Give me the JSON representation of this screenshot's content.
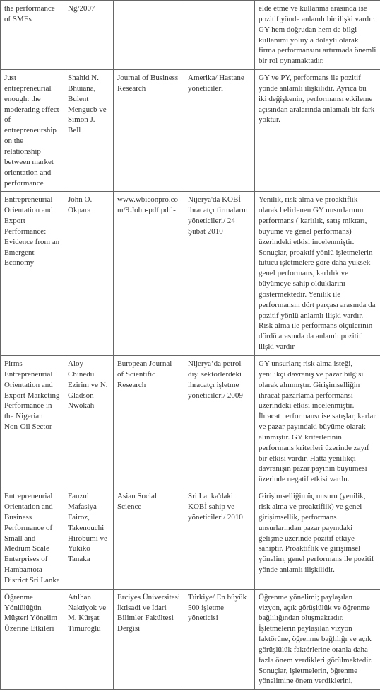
{
  "table": {
    "rows": [
      {
        "title": "the performance of SMEs",
        "authors": "Ng/2007",
        "journal": "",
        "sample": "",
        "finding": "elde etme ve kullanma arasında ise pozitif yönde anlamlı bir ilişki vardır. GY hem doğrudan hem de bilgi kullanımı yoluyla dolaylı olarak firma performansını artırmada önemli bir rol oynamaktadır."
      },
      {
        "title": "Just entrepreneurial enough: the moderating effect of entrepreneurship on\nthe relationship between market orientation and performance",
        "authors": "Shahid N. Bhuiana, Bulent Mengucb ve Simon J. Bell",
        "journal": "Journal of Business Research",
        "sample": "Amerika/ Hastane yöneticileri",
        "finding": "GY ve PY, performans ile pozitif yönde anlamlı ilişkilidir. Ayrıca bu iki değişkenin, performansı etkileme açısından aralarında anlamalı bir fark yoktur."
      },
      {
        "title": "Entrepreneurial Orientation and Export Performance: Evidence from an Emergent Economy",
        "authors": "John O. Okpara",
        "journal": "www.wbiconpro.com/9.John-pdf.pdf -",
        "sample": "Nijerya'da KOBİ ihracatçı firmaların yöneticileri/\n24 Şubat 2010",
        "finding": "Yenilik, risk alma ve proaktiflik olarak belirlenen GY unsurlarının performans  ( karlılık, satış miktarı, büyüme ve genel performans) üzerindeki etkisi incelenmiştir. Sonuçlar, proaktif yönlü işletmelerin tutucu işletmelere göre daha yüksek genel performans, karlılık ve büyümeye sahip olduklarını göstermektedir. Yenilik ile performansın dört parçası arasında da pozitif yönlü anlamlı ilişki vardır. Risk alma ile performans ölçülerinin dördü arasında da anlamlı pozitif ilişki vardır"
      },
      {
        "title": "Firms Entrepreneurial Orientation and Export Marketing Performance in the Nigerian Non-Oil Sector",
        "authors": "Aloy Chinedu Ezirim ve N. Gladson Nwokah",
        "journal": "European Journal of Scientific Research",
        "sample": "Nijerya’da petrol dışı sektörlerdeki ihracatçı işletme yöneticileri/ 2009",
        "finding": "GY unsurları; risk alma isteği, yenilikçi davranış ve pazar bilgisi olarak alınmıştır. Girişimselliğin ihracat pazarlama performansı üzerindeki etkisi incelenmiştir. İhracat performansı ise satışlar, karlar ve pazar payındaki büyüme olarak alınmıştır. GY kriterlerinin performans kriterleri üzerinde zayıf bir etkisi vardır. Hatta yenilikçi davranışın pazar payının büyümesi üzerinde negatif etkisi vardır."
      },
      {
        "title": "Entrepreneurial Orientation and Business Performance of Small\nand Medium Scale Enterprises of Hambantota District Sri Lanka",
        "authors": "Fauzul Mafasiya Fairoz, Takenouchi Hirobumi ve\nYukiko Tanaka",
        "journal": "Asian Social Science",
        "sample": "Sri Lanka'daki  KOBİ sahip  ve yöneticileri/ 2010",
        "finding": "Girişimselliğin üç unsuru (yenilik, risk alma ve proaktiflik) ve genel girişimsellik, performans unsurlarından pazar payındaki gelişme üzerinde pozitif etkiye sahiptir. Proaktiflik ve girişimsel yönelim, genel performans ile pozitif yönde anlamlı ilişkilidir."
      },
      {
        "title": "Öğrenme Yönlülüğün Müşteri Yönelim Üzerine Etkileri",
        "authors": "Atılhan Naktiyok ve M. Kürşat Timuroğlu",
        "journal": "Erciyes Üniversitesi İktisadi ve İdari Bilimler Fakültesi Dergisi",
        "sample": "Türkiye/\n En büyük 500 işletme yöneticisi",
        "finding": "Öğrenme yönelimi; paylaşılan vizyon, açık görüşlülük ve öğrenme bağlılığından oluşmaktadır. İşletmelerin paylaşılan vizyon faktörüne, öğrenme bağlılığı ve açık görüşlülük faktörlerine oranla daha fazla önem verdikleri görülmektedir. Sonuçlar, işletmelerin, öğrenme yönelimine önem verdiklerini,"
      }
    ]
  }
}
